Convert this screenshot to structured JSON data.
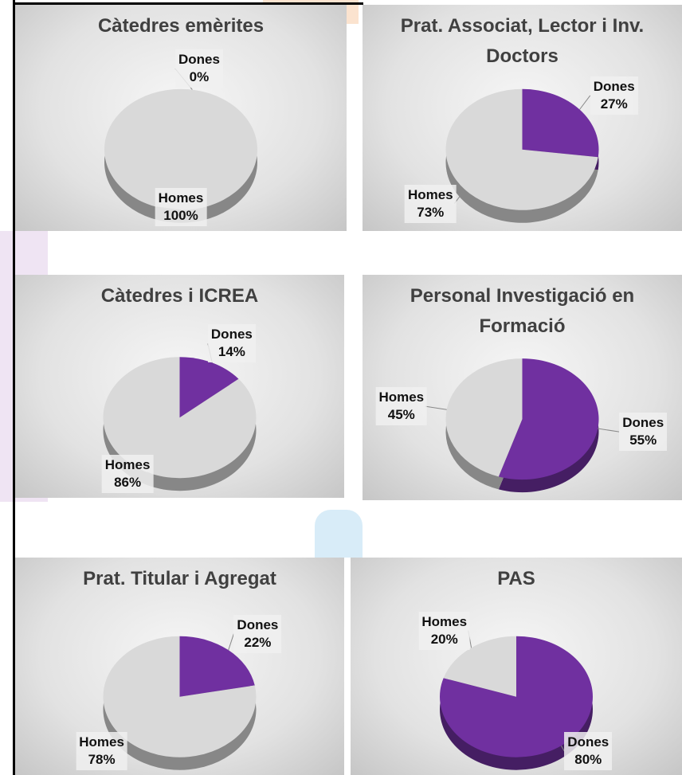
{
  "chart_data": [
    {
      "type": "pie",
      "title": "Càtedres emèrites",
      "categories": [
        "Dones",
        "Homes"
      ],
      "values": [
        0,
        100
      ],
      "value_labels": [
        "0%",
        "100%"
      ],
      "colors": [
        "#7030a0",
        "#d9d9d9"
      ]
    },
    {
      "type": "pie",
      "title": "Prat. Associat, Lector i Inv. Doctors",
      "categories": [
        "Dones",
        "Homes"
      ],
      "values": [
        27,
        73
      ],
      "value_labels": [
        "27%",
        "73%"
      ],
      "colors": [
        "#7030a0",
        "#d9d9d9"
      ]
    },
    {
      "type": "pie",
      "title": "Càtedres i ICREA",
      "categories": [
        "Dones",
        "Homes"
      ],
      "values": [
        14,
        86
      ],
      "value_labels": [
        "14%",
        "86%"
      ],
      "colors": [
        "#7030a0",
        "#d9d9d9"
      ]
    },
    {
      "type": "pie",
      "title": "Personal Investigació en Formació",
      "categories": [
        "Dones",
        "Homes"
      ],
      "values": [
        55,
        45
      ],
      "value_labels": [
        "55%",
        "45%"
      ],
      "colors": [
        "#7030a0",
        "#d9d9d9"
      ]
    },
    {
      "type": "pie",
      "title": "Prat. Titular i Agregat",
      "categories": [
        "Dones",
        "Homes"
      ],
      "values": [
        22,
        78
      ],
      "value_labels": [
        "22%",
        "78%"
      ],
      "colors": [
        "#7030a0",
        "#d9d9d9"
      ]
    },
    {
      "type": "pie",
      "title": "PAS",
      "categories": [
        "Dones",
        "Homes"
      ],
      "values": [
        80,
        20
      ],
      "value_labels": [
        "80%",
        "20%"
      ],
      "colors": [
        "#7030a0",
        "#d9d9d9"
      ]
    }
  ]
}
